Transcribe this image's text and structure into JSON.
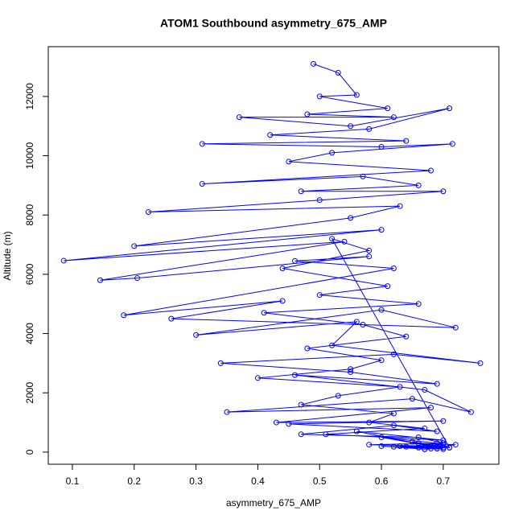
{
  "chart_data": {
    "type": "line",
    "title": "ATOM1 Southbound asymmetry_675_AMP",
    "x_label": "asymmetry_675_AMP",
    "y_label": "Altitude (m)",
    "color": "#0000ff",
    "markers": "circle",
    "xlim": [
      0.061,
      0.79
    ],
    "ylim": [
      -410,
      13680
    ],
    "xticks": [
      0.1,
      0.2,
      0.3,
      0.4,
      0.5,
      0.6,
      0.7
    ],
    "yticks": [
      0,
      2000,
      4000,
      6000,
      8000,
      10000,
      12000
    ],
    "x": [
      0.49,
      0.53,
      0.56,
      0.5,
      0.61,
      0.48,
      0.62,
      0.37,
      0.55,
      0.71,
      0.58,
      0.42,
      0.64,
      0.31,
      0.6,
      0.715,
      0.52,
      0.45,
      0.68,
      0.31,
      0.57,
      0.66,
      0.47,
      0.7,
      0.5,
      0.223,
      0.63,
      0.55,
      0.2,
      0.6,
      0.086,
      0.54,
      0.145,
      0.205,
      0.58,
      0.46,
      0.62,
      0.183,
      0.44,
      0.26,
      0.72,
      0.6,
      0.3,
      0.56,
      0.52,
      0.76,
      0.62,
      0.34,
      0.55,
      0.69,
      0.46,
      0.67,
      0.745,
      0.65,
      0.35,
      0.68,
      0.43,
      0.7,
      0.45,
      0.69,
      0.62,
      0.47,
      0.66,
      0.7,
      0.58,
      0.68,
      0.71,
      0.64,
      0.69,
      0.6,
      0.67,
      0.7,
      0.66,
      0.72,
      0.68,
      0.63,
      0.69,
      0.7,
      0.65,
      0.71,
      0.52,
      0.58,
      0.44,
      0.61,
      0.5,
      0.66,
      0.41,
      0.57,
      0.64,
      0.48,
      0.6,
      0.55,
      0.4,
      0.63,
      0.53,
      0.47,
      0.62,
      0.58,
      0.67,
      0.51,
      0.7,
      0.56,
      0.68,
      0.6,
      0.69,
      0.66,
      0.7,
      0.62,
      0.69,
      0.67
    ],
    "values": [
      13100,
      12800,
      12050,
      12000,
      11600,
      11400,
      11300,
      11300,
      11000,
      11600,
      10900,
      10700,
      10500,
      10400,
      10300,
      10400,
      10100,
      9800,
      9500,
      9050,
      9300,
      9000,
      8800,
      8800,
      8500,
      8100,
      8300,
      7900,
      6950,
      7500,
      6460,
      7100,
      5800,
      5870,
      6600,
      6450,
      6200,
      4620,
      5100,
      4500,
      4200,
      4800,
      3950,
      4400,
      3600,
      3000,
      3300,
      3000,
      2700,
      2300,
      2600,
      2100,
      1350,
      1800,
      1350,
      1500,
      1000,
      1050,
      950,
      700,
      900,
      600,
      500,
      300,
      250,
      200,
      150,
      180,
      120,
      200,
      100,
      150,
      300,
      250,
      120,
      200,
      180,
      100,
      350,
      150,
      7200,
      6800,
      6200,
      5600,
      5300,
      5000,
      4700,
      4300,
      3900,
      3500,
      3100,
      2800,
      2500,
      2200,
      1900,
      1600,
      1300,
      1000,
      800,
      600,
      400,
      700,
      200,
      500,
      300,
      150,
      250,
      180,
      120,
      100
    ]
  }
}
